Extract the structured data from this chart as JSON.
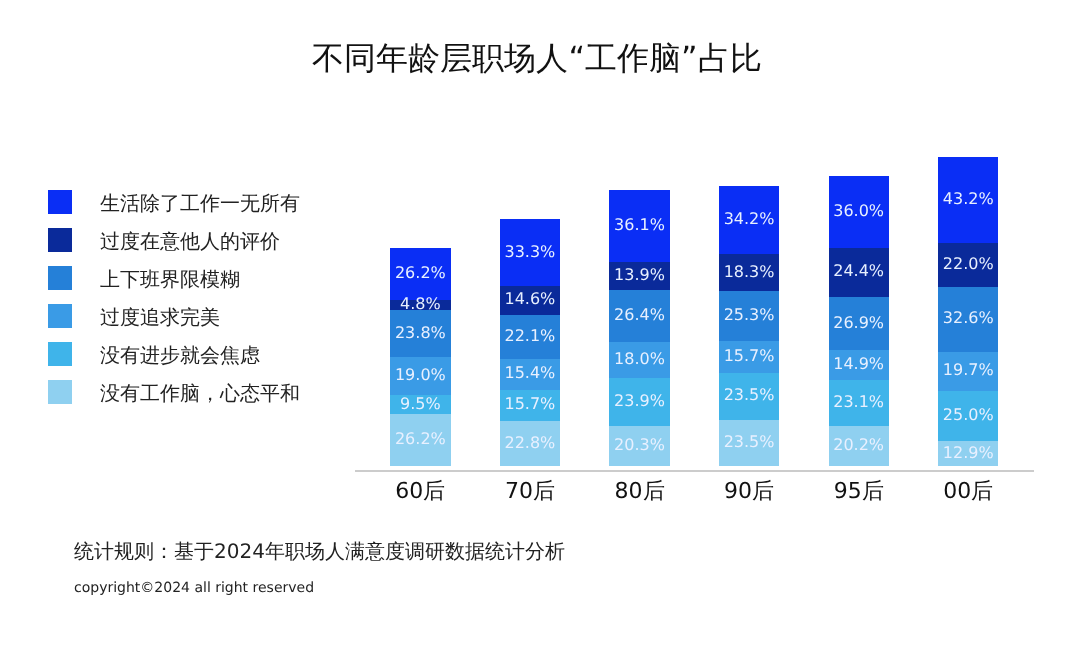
{
  "chart_data": {
    "type": "bar",
    "stacked": true,
    "legend": "left",
    "title": "不同年龄层职场人“工作脑”占比",
    "categories": [
      "60后",
      "70后",
      "80后",
      "90后",
      "95后",
      "00后"
    ],
    "series": [
      {
        "name": "没有工作脑，心态平和",
        "color": "#8fd0f0",
        "values": [
          26.2,
          22.8,
          20.3,
          23.5,
          20.2,
          12.9
        ],
        "value_labels": [
          "26.2%",
          "22.8%",
          "20.3%",
          "23.5%",
          "20.2%",
          "12.9%"
        ]
      },
      {
        "name": "没有进步就会焦虑",
        "color": "#3fb4ea",
        "values": [
          9.5,
          15.7,
          23.9,
          23.5,
          23.1,
          25.0
        ],
        "value_labels": [
          "9.5%",
          "15.7%",
          "23.9%",
          "23.5%",
          "23.1%",
          "25.0%"
        ]
      },
      {
        "name": "过度追求完美",
        "color": "#3a9be6",
        "values": [
          19.0,
          15.4,
          18.0,
          15.7,
          14.9,
          19.7
        ],
        "value_labels": [
          "19.0%",
          "15.4%",
          "18.0%",
          "15.7%",
          "14.9%",
          "19.7%"
        ]
      },
      {
        "name": "上下班界限模糊",
        "color": "#2580d8",
        "values": [
          23.8,
          22.1,
          26.4,
          25.3,
          26.9,
          32.6
        ],
        "value_labels": [
          "23.8%",
          "22.1%",
          "26.4%",
          "25.3%",
          "26.9%",
          "32.6%"
        ]
      },
      {
        "name": "过度在意他人的评价",
        "color": "#0a2a9a",
        "values": [
          4.8,
          14.6,
          13.9,
          18.3,
          24.4,
          22.0
        ],
        "value_labels": [
          "4.8%",
          "14.6%",
          "13.9%",
          "18.3%",
          "24.4%",
          "22.0%"
        ]
      },
      {
        "name": "生活除了工作一无所有",
        "color": "#0a2ef5",
        "values": [
          26.2,
          33.3,
          36.1,
          34.2,
          36.0,
          43.2
        ],
        "value_labels": [
          "26.2%",
          "33.3%",
          "36.1%",
          "34.2%",
          "36.0%",
          "43.2%"
        ]
      }
    ],
    "annotations": [
      "统计规则：基于2024年职场人满意度调研数据统计分析",
      "copyright©2024 all right reserved"
    ]
  }
}
